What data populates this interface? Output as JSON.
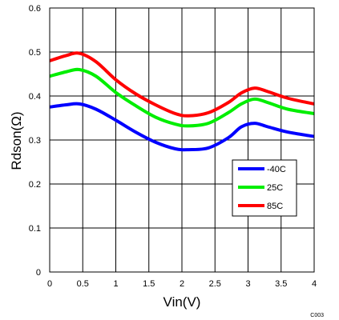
{
  "chart_data": {
    "type": "line",
    "xlabel": "Vin(V)",
    "ylabel": "Rdson(Ω)",
    "xlim": [
      0,
      4
    ],
    "ylim": [
      0,
      0.6
    ],
    "x_ticks": [
      0,
      0.5,
      1,
      1.5,
      2,
      2.5,
      3,
      3.5,
      4
    ],
    "x_tick_labels": [
      "0",
      "0.5",
      "1",
      "1.5",
      "2",
      "2.5",
      "3",
      "3.5",
      "4"
    ],
    "y_ticks": [
      0,
      0.1,
      0.2,
      0.3,
      0.4,
      0.5,
      0.6
    ],
    "y_tick_labels": [
      "0",
      "0.1",
      "0.2",
      "0.3",
      "0.4",
      "0.5",
      "0.6"
    ],
    "grid": true,
    "legend_position": "lower-right",
    "figure_code": "C003",
    "series": [
      {
        "name": "-40C",
        "color": "#0000ff",
        "x": [
          0,
          0.25,
          0.45,
          0.7,
          1.0,
          1.3,
          1.6,
          1.9,
          2.1,
          2.4,
          2.7,
          2.9,
          3.1,
          3.3,
          3.6,
          4.0
        ],
        "y": [
          0.375,
          0.38,
          0.382,
          0.37,
          0.345,
          0.318,
          0.295,
          0.28,
          0.278,
          0.282,
          0.305,
          0.33,
          0.338,
          0.33,
          0.318,
          0.308
        ]
      },
      {
        "name": "25C",
        "color": "#00ee00",
        "x": [
          0,
          0.25,
          0.45,
          0.7,
          1.0,
          1.3,
          1.6,
          1.9,
          2.1,
          2.4,
          2.7,
          2.9,
          3.1,
          3.3,
          3.6,
          4.0
        ],
        "y": [
          0.445,
          0.455,
          0.46,
          0.445,
          0.408,
          0.378,
          0.352,
          0.336,
          0.332,
          0.338,
          0.362,
          0.382,
          0.393,
          0.385,
          0.37,
          0.36
        ]
      },
      {
        "name": "85C",
        "color": "#ff0000",
        "x": [
          0,
          0.25,
          0.45,
          0.7,
          1.0,
          1.3,
          1.6,
          1.9,
          2.1,
          2.4,
          2.7,
          2.9,
          3.1,
          3.3,
          3.6,
          4.0
        ],
        "y": [
          0.48,
          0.492,
          0.497,
          0.478,
          0.437,
          0.405,
          0.38,
          0.36,
          0.355,
          0.362,
          0.385,
          0.407,
          0.418,
          0.41,
          0.395,
          0.382
        ]
      }
    ]
  }
}
